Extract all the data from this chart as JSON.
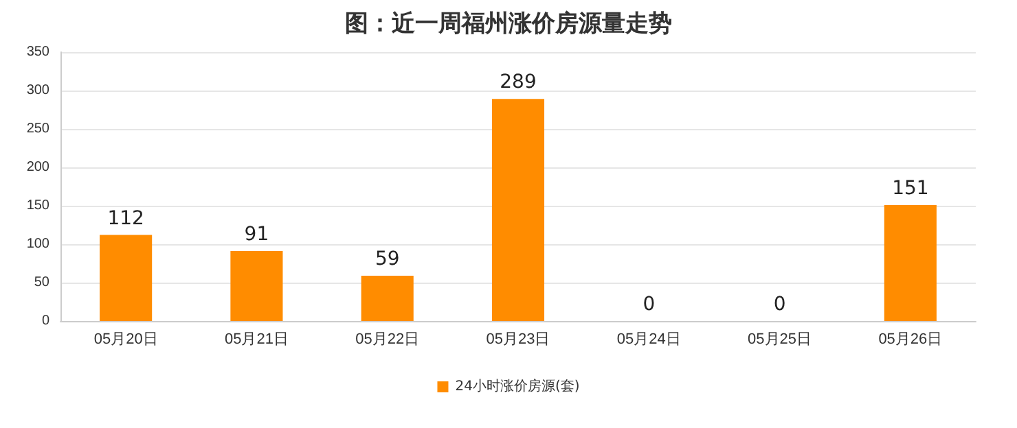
{
  "chart_data": {
    "type": "bar",
    "title": "图：近一周福州涨价房源量走势",
    "categories": [
      "05月20日",
      "05月21日",
      "05月22日",
      "05月23日",
      "05月24日",
      "05月25日",
      "05月26日"
    ],
    "series": [
      {
        "name": "24小时涨价房源(套)",
        "color": "#ff8c00",
        "values": [
          112,
          91,
          59,
          289,
          0,
          0,
          151
        ]
      }
    ],
    "ylim": [
      0,
      350
    ],
    "yticks": [
      0,
      50,
      100,
      150,
      200,
      250,
      300,
      350
    ],
    "grid": "y",
    "legend": "bottom",
    "data_labels": true
  }
}
